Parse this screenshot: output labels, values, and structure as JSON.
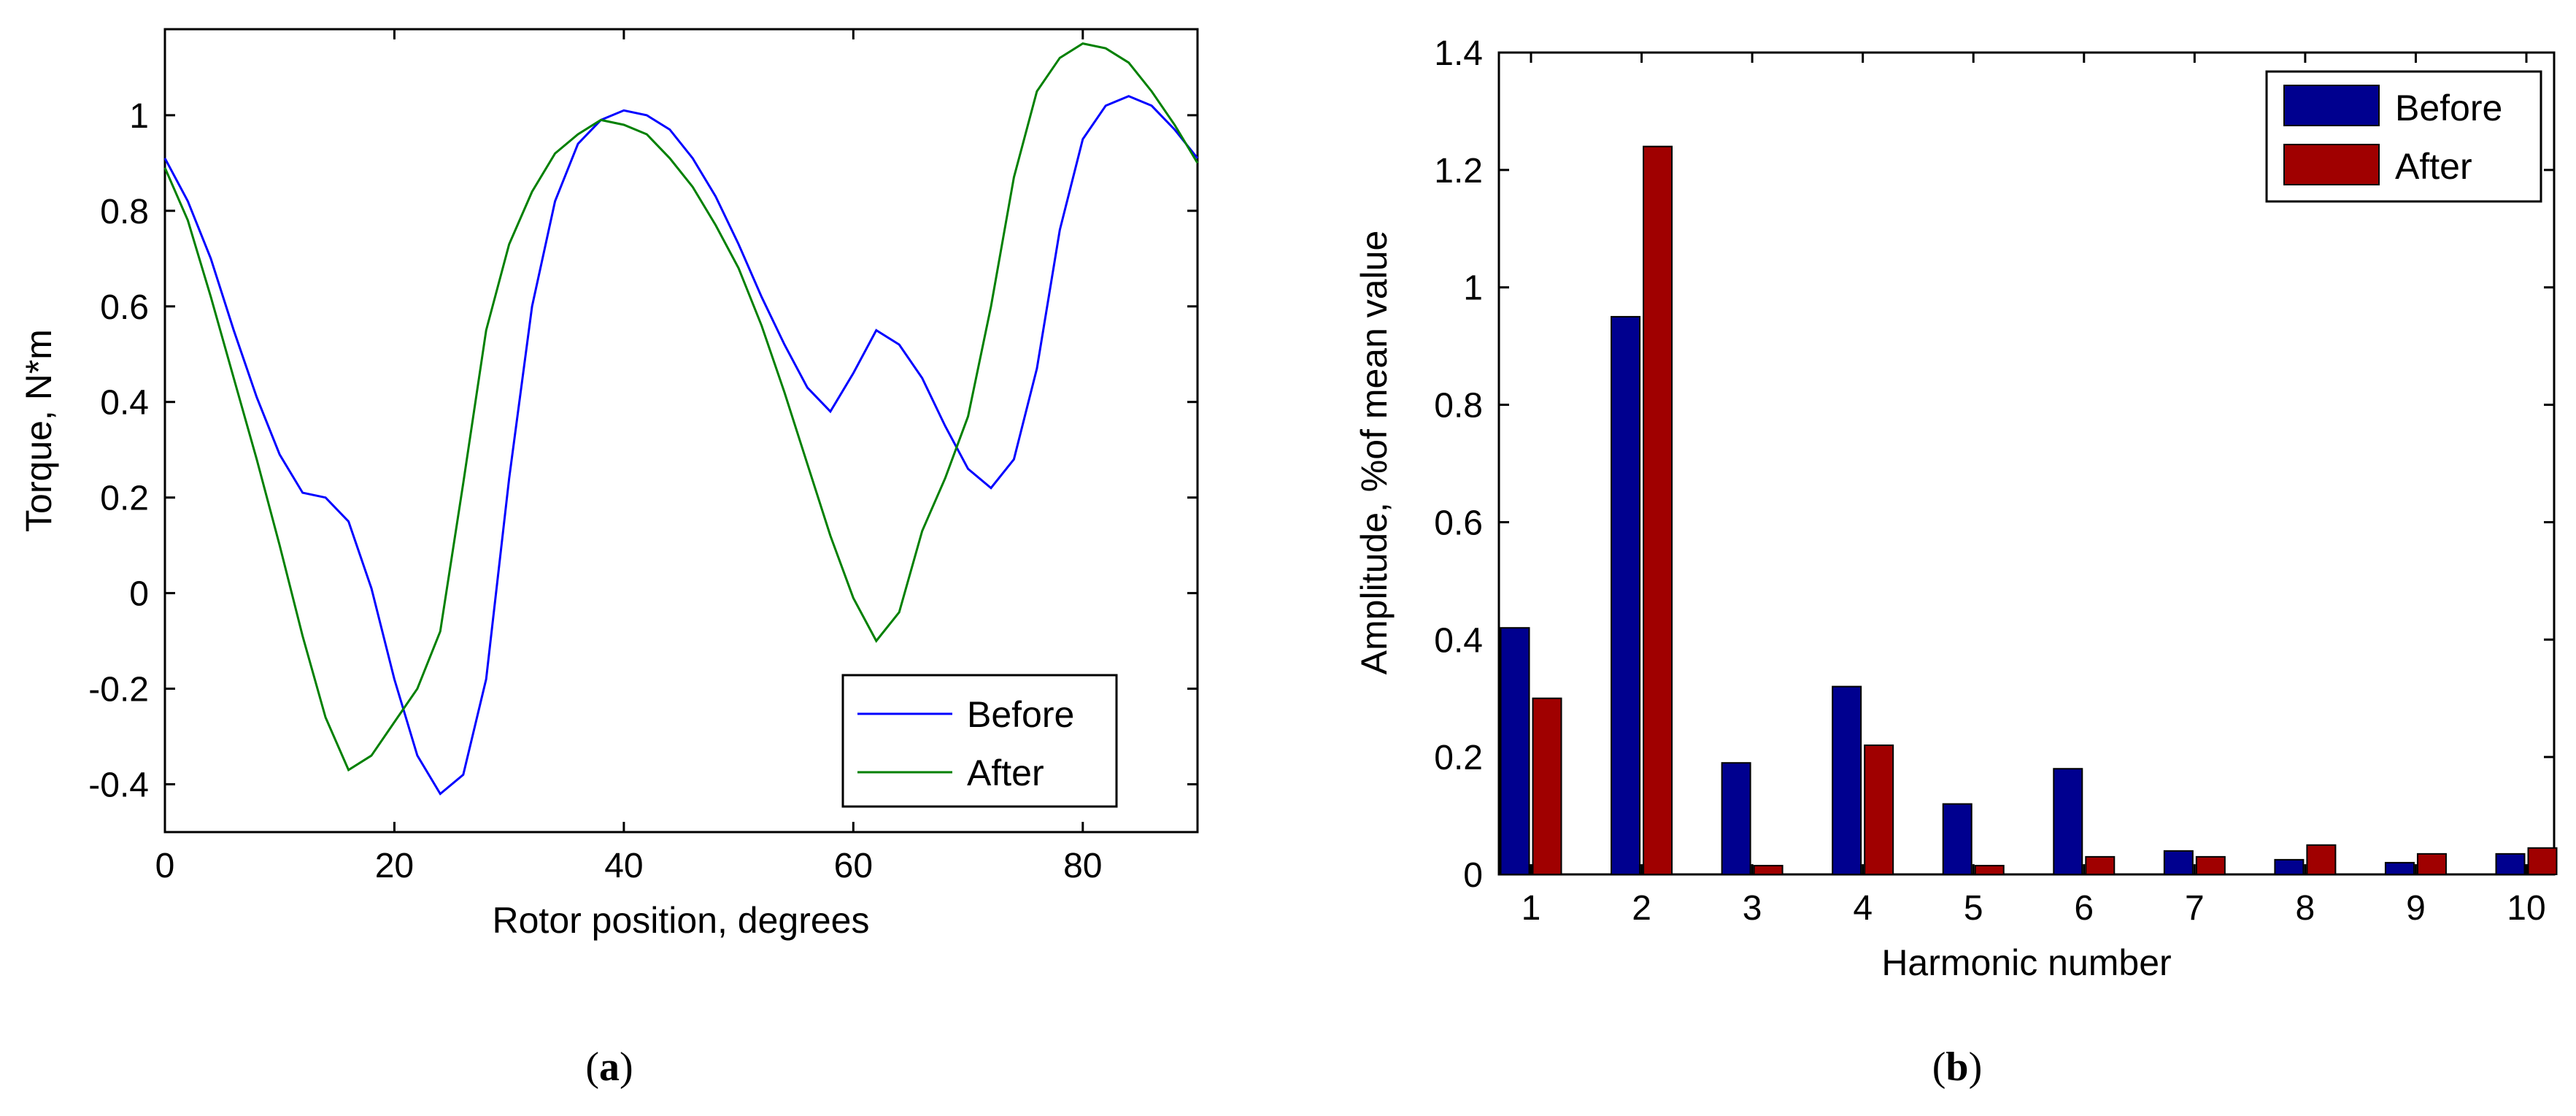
{
  "chart_data": [
    {
      "type": "line",
      "panel": "a",
      "xlabel": "Rotor position, degrees",
      "ylabel": "Torque, N*m",
      "xlim": [
        0,
        90
      ],
      "ylim": [
        -0.5,
        1.18
      ],
      "xticks": [
        0,
        20,
        40,
        60,
        80
      ],
      "yticks": [
        -0.4,
        -0.2,
        0,
        0.2,
        0.4,
        0.6,
        0.8,
        1
      ],
      "ytick_labels": [
        "-0.4",
        "-0.2",
        "0",
        "0.2",
        "0.4",
        "0.6",
        "0.8",
        "1"
      ],
      "legend_position": "bottom-right",
      "series": [
        {
          "name": "Before",
          "color": "#0000ff",
          "x": [
            0,
            2,
            4,
            6,
            8,
            10,
            12,
            14,
            16,
            18,
            20,
            22,
            24,
            26,
            28,
            30,
            32,
            34,
            36,
            38,
            40,
            42,
            44,
            46,
            48,
            50,
            52,
            54,
            56,
            58,
            60,
            62,
            64,
            66,
            68,
            70,
            72,
            74,
            76,
            78,
            80,
            82,
            84,
            86,
            88,
            90
          ],
          "y": [
            0.91,
            0.82,
            0.7,
            0.55,
            0.41,
            0.29,
            0.21,
            0.2,
            0.15,
            0.01,
            -0.18,
            -0.34,
            -0.42,
            -0.38,
            -0.18,
            0.24,
            0.6,
            0.82,
            0.94,
            0.99,
            1.01,
            1.0,
            0.97,
            0.91,
            0.83,
            0.73,
            0.62,
            0.52,
            0.43,
            0.38,
            0.46,
            0.55,
            0.52,
            0.45,
            0.35,
            0.26,
            0.22,
            0.28,
            0.47,
            0.76,
            0.95,
            1.02,
            1.04,
            1.02,
            0.97,
            0.91
          ]
        },
        {
          "name": "After",
          "color": "#008000",
          "x": [
            0,
            2,
            4,
            6,
            8,
            10,
            12,
            14,
            16,
            18,
            20,
            22,
            24,
            26,
            28,
            30,
            32,
            34,
            36,
            38,
            40,
            42,
            44,
            46,
            48,
            50,
            52,
            54,
            56,
            58,
            60,
            62,
            64,
            66,
            68,
            70,
            72,
            74,
            76,
            78,
            80,
            82,
            84,
            86,
            88,
            90
          ],
          "y": [
            0.89,
            0.78,
            0.62,
            0.45,
            0.28,
            0.1,
            -0.09,
            -0.26,
            -0.37,
            -0.34,
            -0.27,
            -0.2,
            -0.08,
            0.23,
            0.55,
            0.73,
            0.84,
            0.92,
            0.96,
            0.99,
            0.98,
            0.96,
            0.91,
            0.85,
            0.77,
            0.68,
            0.56,
            0.42,
            0.27,
            0.12,
            -0.01,
            -0.1,
            -0.04,
            0.13,
            0.24,
            0.37,
            0.6,
            0.87,
            1.05,
            1.12,
            1.15,
            1.14,
            1.11,
            1.05,
            0.98,
            0.9
          ]
        }
      ]
    },
    {
      "type": "bar",
      "panel": "b",
      "xlabel": "Harmonic number",
      "ylabel": "Amplitude, %of mean value",
      "categories": [
        "1",
        "2",
        "3",
        "4",
        "5",
        "6",
        "7",
        "8",
        "9",
        "10"
      ],
      "ylim": [
        0,
        1.4
      ],
      "yticks": [
        0,
        0.2,
        0.4,
        0.6,
        0.8,
        1,
        1.2,
        1.4
      ],
      "ytick_labels": [
        "0",
        "0.2",
        "0.4",
        "0.6",
        "0.8",
        "1",
        "1.2",
        "1.4"
      ],
      "legend_position": "top-right",
      "series": [
        {
          "name": "Before",
          "color": "#00008f",
          "values": [
            0.42,
            0.95,
            0.19,
            0.32,
            0.12,
            0.18,
            0.04,
            0.025,
            0.02,
            0.035
          ]
        },
        {
          "name": "After",
          "color": "#a00000",
          "values": [
            0.3,
            1.24,
            0.015,
            0.22,
            0.015,
            0.03,
            0.03,
            0.05,
            0.035,
            0.045
          ]
        }
      ]
    }
  ],
  "labels": {
    "panel_a": "a",
    "panel_b": "b"
  }
}
